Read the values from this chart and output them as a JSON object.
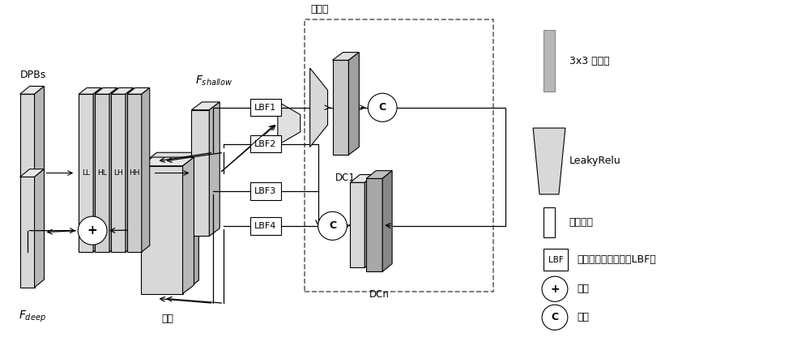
{
  "bg_color": "#ffffff",
  "lc": "#000000",
  "face_light": "#e0e0e0",
  "face_mid": "#cccccc",
  "face_dark": "#b0b0b0",
  "face_darker": "#989898",
  "dashed_color": "#666666",
  "labels": {
    "DPBs": "DPBs",
    "F_shallow": "F_shallow",
    "F_deep": "F_deep",
    "dense_block": "密集块",
    "lianJie": "连接",
    "LBF1": "LBF1",
    "LBF2": "LBF2",
    "LBF3": "LBF3",
    "LBF4": "LBF4",
    "DC1": "DC1",
    "DCn": "DCn",
    "legend_conv": "3x3 卷积层",
    "legend_leaky": "LeakyRelu",
    "legend_dilated": "膨胀卷积",
    "legend_lbf": "可学习带通滤波器（LBF）",
    "legend_add": "相加",
    "legend_concat": "连接"
  }
}
